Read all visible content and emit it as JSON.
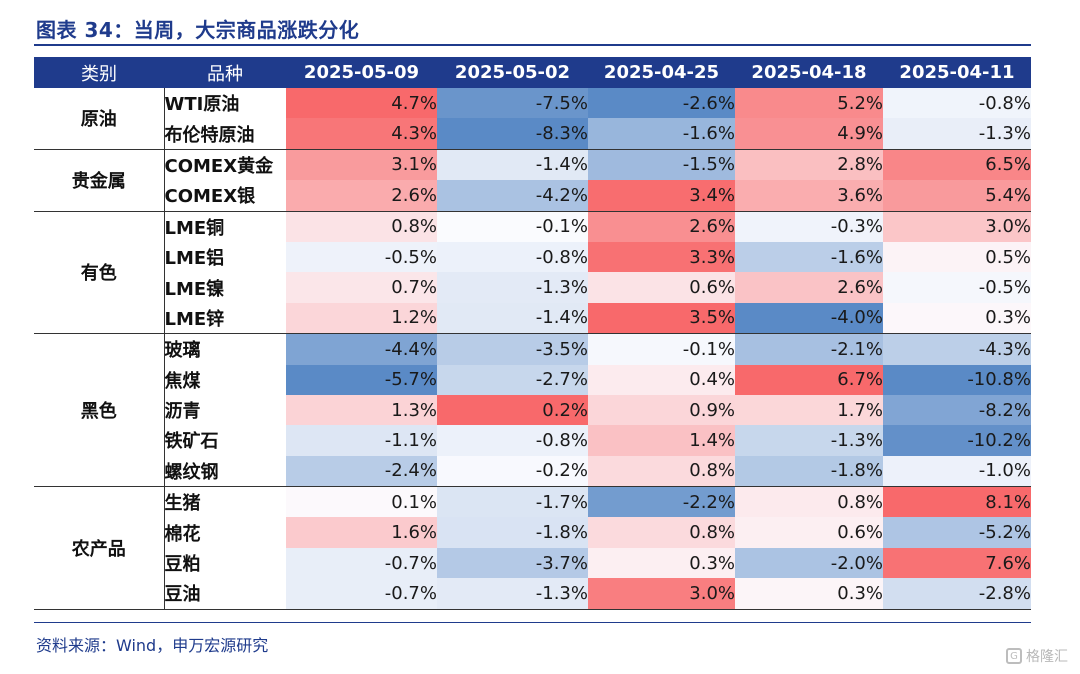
{
  "title": "图表 34：当周，大宗商品涨跌分化",
  "table": {
    "headers": [
      "类别",
      "品种",
      "2025-05-09",
      "2025-05-02",
      "2025-04-25",
      "2025-04-18",
      "2025-04-11"
    ],
    "groups": [
      {
        "category": "原油",
        "rows": [
          {
            "product": "WTI原油",
            "values": [
              "4.7%",
              "-7.5%",
              "-2.6%",
              "5.2%",
              "-0.8%"
            ]
          },
          {
            "product": "布伦特原油",
            "values": [
              "4.3%",
              "-8.3%",
              "-1.6%",
              "4.9%",
              "-1.3%"
            ]
          }
        ]
      },
      {
        "category": "贵金属",
        "rows": [
          {
            "product": "COMEX黄金",
            "values": [
              "3.1%",
              "-1.4%",
              "-1.5%",
              "2.8%",
              "6.5%"
            ]
          },
          {
            "product": "COMEX银",
            "values": [
              "2.6%",
              "-4.2%",
              "3.4%",
              "3.6%",
              "5.4%"
            ]
          }
        ]
      },
      {
        "category": "有色",
        "rows": [
          {
            "product": "LME铜",
            "values": [
              "0.8%",
              "-0.1%",
              "2.6%",
              "-0.3%",
              "3.0%"
            ]
          },
          {
            "product": "LME铝",
            "values": [
              "-0.5%",
              "-0.8%",
              "3.3%",
              "-1.6%",
              "0.5%"
            ]
          },
          {
            "product": "LME镍",
            "values": [
              "0.7%",
              "-1.3%",
              "0.6%",
              "2.6%",
              "-0.5%"
            ]
          },
          {
            "product": "LME锌",
            "values": [
              "1.2%",
              "-1.4%",
              "3.5%",
              "-4.0%",
              "0.3%"
            ]
          }
        ]
      },
      {
        "category": "黑色",
        "rows": [
          {
            "product": "玻璃",
            "values": [
              "-4.4%",
              "-3.5%",
              "-0.1%",
              "-2.1%",
              "-4.3%"
            ]
          },
          {
            "product": "焦煤",
            "values": [
              "-5.7%",
              "-2.7%",
              "0.4%",
              "6.7%",
              "-10.8%"
            ]
          },
          {
            "product": "沥青",
            "values": [
              "1.3%",
              "0.2%",
              "0.9%",
              "1.7%",
              "-8.2%"
            ]
          },
          {
            "product": "铁矿石",
            "values": [
              "-1.1%",
              "-0.8%",
              "1.4%",
              "-1.3%",
              "-10.2%"
            ]
          },
          {
            "product": "螺纹钢",
            "values": [
              "-2.4%",
              "-0.2%",
              "0.8%",
              "-1.8%",
              "-1.0%"
            ]
          }
        ]
      },
      {
        "category": "农产品",
        "rows": [
          {
            "product": "生猪",
            "values": [
              "0.1%",
              "-1.7%",
              "-2.2%",
              "0.8%",
              "8.1%"
            ]
          },
          {
            "product": "棉花",
            "values": [
              "1.6%",
              "-1.8%",
              "0.8%",
              "0.6%",
              "-5.2%"
            ]
          },
          {
            "product": "豆粕",
            "values": [
              "-0.7%",
              "-3.7%",
              "0.3%",
              "-2.0%",
              "7.6%"
            ]
          },
          {
            "product": "豆油",
            "values": [
              "-0.7%",
              "-1.3%",
              "3.0%",
              "0.3%",
              "-2.8%"
            ]
          }
        ]
      }
    ],
    "heat_colors": {
      "positive": "#F8696B",
      "negative": "#5A8AC6",
      "neutral": "#FCFCFF"
    }
  },
  "source": "资料来源：Wind，申万宏源研究",
  "watermark": "格隆汇"
}
